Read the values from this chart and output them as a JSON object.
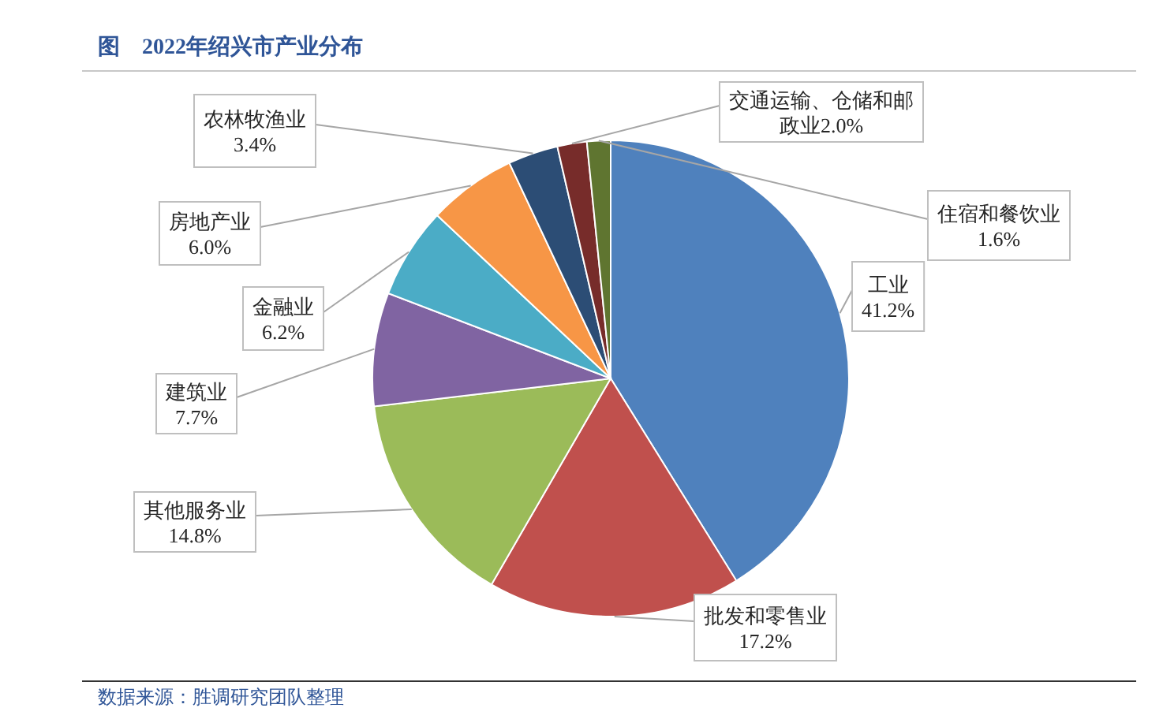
{
  "chart_data": {
    "type": "pie",
    "title": "图　2022年绍兴市产业分布",
    "categories": [
      "工业",
      "批发和零售业",
      "其他服务业",
      "建筑业",
      "金融业",
      "房地产业",
      "农林牧渔业",
      "交通运输、仓储和邮政业",
      "住宿和餐饮业"
    ],
    "values": [
      41.2,
      17.2,
      14.8,
      7.7,
      6.2,
      6.0,
      3.4,
      2.0,
      1.6
    ],
    "colors": [
      "#4f81bd",
      "#c0504d",
      "#9bbb59",
      "#8064a2",
      "#4bacc6",
      "#f79646",
      "#2c4d75",
      "#772c2a",
      "#5f7530"
    ],
    "value_labels": [
      "41.2%",
      "17.2%",
      "14.8%",
      "7.7%",
      "6.2%",
      "6.0%",
      "3.4%",
      "2.0%",
      "1.6%"
    ],
    "annotations": [
      "数据来源：胜调研究团队整理"
    ]
  }
}
